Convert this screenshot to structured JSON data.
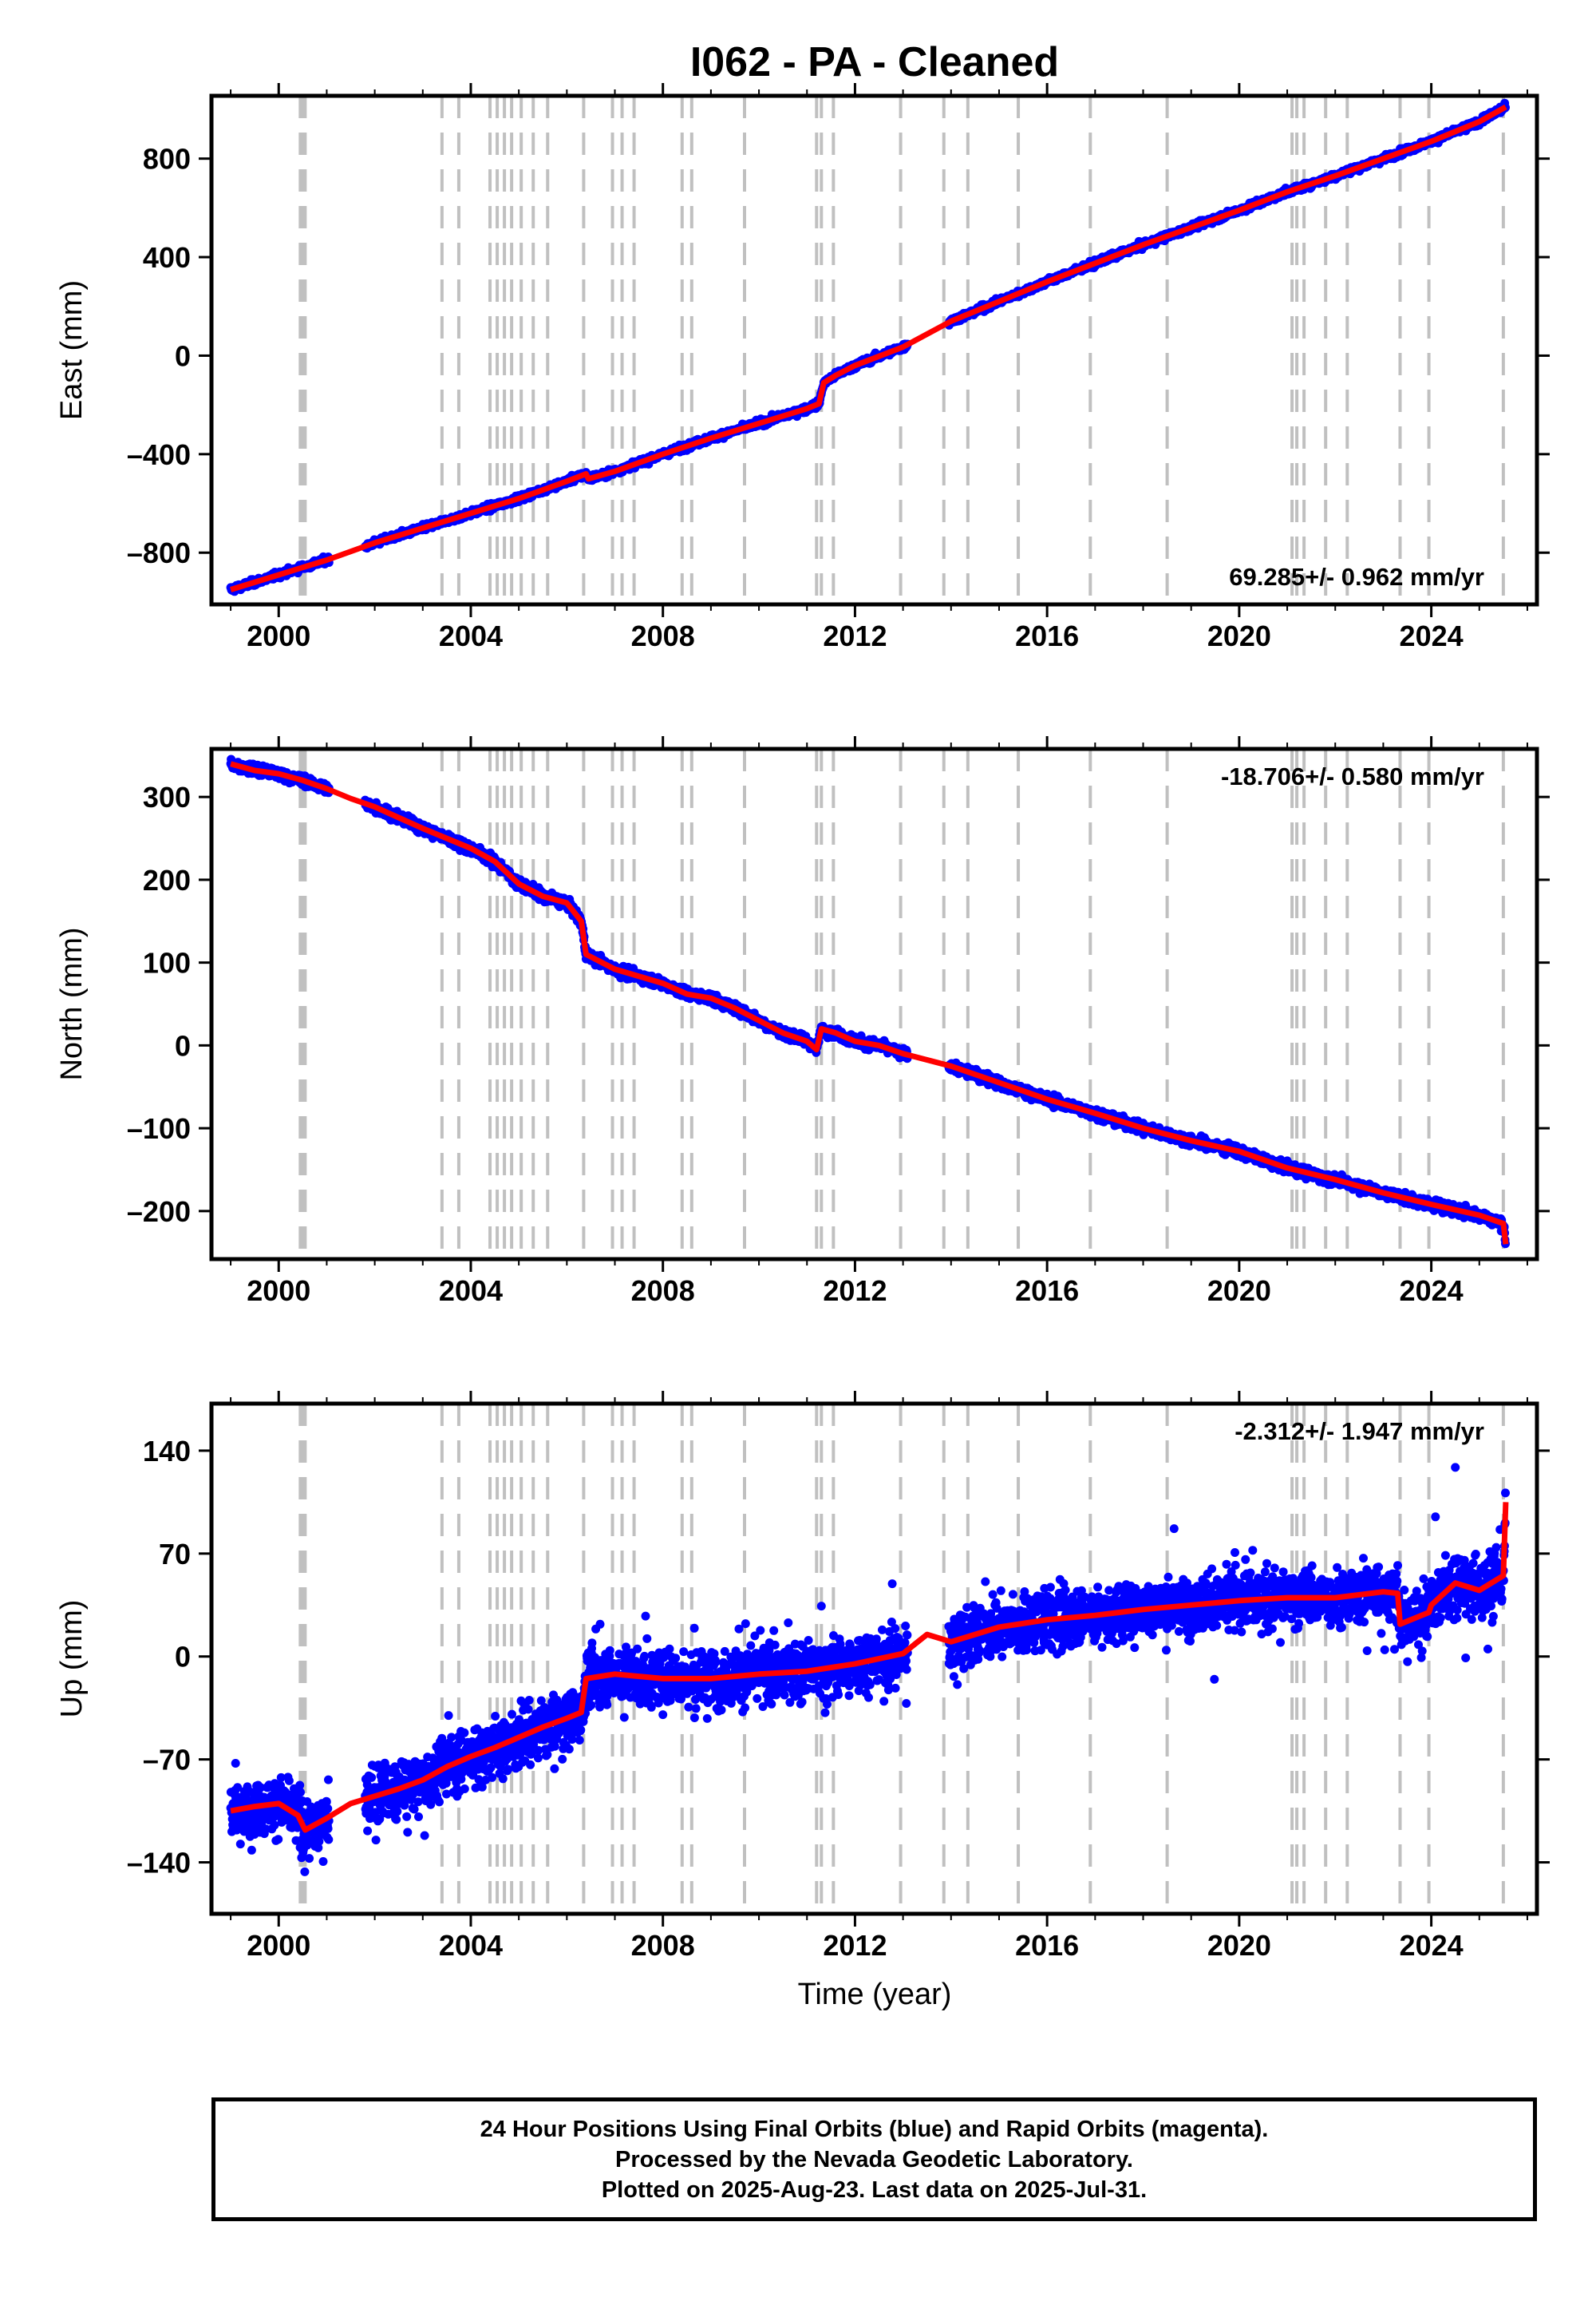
{
  "title": "I062  - PA - Cleaned",
  "x_axis": {
    "label": "Time (year)",
    "range": [
      1998.6,
      2026.2
    ],
    "ticks": [
      2000,
      2004,
      2008,
      2012,
      2016,
      2020,
      2024
    ],
    "tick_labels": [
      "2000",
      "2004",
      "2008",
      "2012",
      "2016",
      "2020",
      "2024"
    ]
  },
  "event_lines": {
    "color": "#c0c0c0",
    "style": "dashed",
    "years": [
      2000.45,
      2000.5,
      2000.55,
      2003.4,
      2003.75,
      2004.4,
      2004.55,
      2004.7,
      2004.85,
      2005.05,
      2005.3,
      2005.6,
      2006.35,
      2006.95,
      2007.15,
      2007.4,
      2008.4,
      2008.6,
      2009.7,
      2011.2,
      2011.3,
      2011.55,
      2012.95,
      2013.85,
      2014.35,
      2015.4,
      2016.9,
      2018.5,
      2021.1,
      2021.2,
      2021.35,
      2021.8,
      2022.25,
      2023.35,
      2023.95,
      2025.5
    ]
  },
  "chart_data": [
    {
      "type": "scatter",
      "ylabel": "East (mm)",
      "ylim": [
        -1010,
        1055
      ],
      "yticks": [
        -800,
        -400,
        0,
        400,
        800
      ],
      "ytick_labels": [
        "–800",
        "–400",
        "0",
        "400",
        "800"
      ],
      "rate_label": "69.285+/- 0.962 mm/yr",
      "rate_label_position": "bottom-right",
      "series": [
        {
          "name": "Final Orbits",
          "color": "#0000ff",
          "x": [
            1999.0,
            2000.0,
            2000.5,
            2001.0,
            2002.0,
            2003.0,
            2004.0,
            2005.0,
            2006.0,
            2006.4,
            2006.45,
            2007.0,
            2008.0,
            2009.0,
            2010.0,
            2011.0,
            2011.25,
            2011.35,
            2011.6,
            2012.0,
            2013.0,
            2014.0,
            2015.0,
            2016.0,
            2017.0,
            2018.0,
            2019.0,
            2020.0,
            2021.0,
            2022.0,
            2023.0,
            2024.0,
            2025.0,
            2025.55
          ],
          "y": [
            -950,
            -890,
            -860,
            -830,
            -760,
            -700,
            -640,
            -580,
            -510,
            -480,
            -500,
            -470,
            -400,
            -335,
            -275,
            -215,
            -195,
            -110,
            -80,
            -40,
            35,
            140,
            220,
            300,
            375,
            450,
            520,
            590,
            665,
            730,
            800,
            870,
            950,
            1010
          ]
        },
        {
          "name": "Model",
          "color": "#ff0000",
          "x": [
            1999.0,
            2000.0,
            2000.5,
            2001.0,
            2002.0,
            2003.0,
            2004.0,
            2005.0,
            2006.0,
            2006.4,
            2006.45,
            2007.0,
            2008.0,
            2009.0,
            2010.0,
            2011.0,
            2011.25,
            2011.35,
            2011.6,
            2012.0,
            2013.0,
            2014.0,
            2015.0,
            2016.0,
            2017.0,
            2018.0,
            2019.0,
            2020.0,
            2021.0,
            2022.0,
            2023.0,
            2024.0,
            2025.0,
            2025.55
          ],
          "y": [
            -950,
            -890,
            -860,
            -830,
            -760,
            -700,
            -640,
            -580,
            -510,
            -480,
            -500,
            -470,
            -400,
            -335,
            -275,
            -215,
            -195,
            -110,
            -80,
            -40,
            35,
            140,
            220,
            300,
            375,
            450,
            520,
            590,
            665,
            730,
            800,
            870,
            950,
            1010
          ]
        }
      ]
    },
    {
      "type": "scatter",
      "ylabel": "North (mm)",
      "ylim": [
        -258,
        358
      ],
      "yticks": [
        -200,
        -100,
        0,
        100,
        200,
        300
      ],
      "ytick_labels": [
        "–200",
        "–100",
        "0",
        "100",
        "200",
        "300"
      ],
      "rate_label": "-18.706+/- 0.580 mm/yr",
      "rate_label_position": "top-right",
      "series": [
        {
          "name": "Final Orbits",
          "color": "#0000ff",
          "x": [
            1999.0,
            1999.5,
            2000.0,
            2000.5,
            2001.0,
            2001.5,
            2002.0,
            2003.0,
            2004.0,
            2004.5,
            2005.0,
            2005.5,
            2006.0,
            2006.3,
            2006.4,
            2007.0,
            2008.0,
            2008.5,
            2009.0,
            2009.5,
            2010.0,
            2010.5,
            2011.0,
            2011.2,
            2011.3,
            2011.6,
            2012.0,
            2012.5,
            2013.0,
            2014.0,
            2015.0,
            2016.0,
            2017.0,
            2018.0,
            2019.0,
            2020.0,
            2021.0,
            2022.0,
            2023.0,
            2024.0,
            2025.0,
            2025.5,
            2025.55
          ],
          "y": [
            340,
            332,
            328,
            320,
            310,
            298,
            288,
            262,
            238,
            222,
            195,
            180,
            172,
            150,
            110,
            92,
            75,
            62,
            57,
            45,
            30,
            15,
            5,
            -5,
            20,
            15,
            5,
            0,
            -10,
            -25,
            -45,
            -65,
            -82,
            -100,
            -115,
            -128,
            -148,
            -162,
            -178,
            -192,
            -205,
            -215,
            -240
          ]
        },
        {
          "name": "Model",
          "color": "#ff0000",
          "x": [
            1999.0,
            1999.5,
            2000.0,
            2000.5,
            2001.0,
            2001.5,
            2002.0,
            2003.0,
            2004.0,
            2004.5,
            2005.0,
            2005.5,
            2006.0,
            2006.3,
            2006.4,
            2007.0,
            2008.0,
            2008.5,
            2009.0,
            2009.5,
            2010.0,
            2010.5,
            2011.0,
            2011.2,
            2011.3,
            2011.6,
            2012.0,
            2012.5,
            2013.0,
            2014.0,
            2015.0,
            2016.0,
            2017.0,
            2018.0,
            2019.0,
            2020.0,
            2021.0,
            2022.0,
            2023.0,
            2024.0,
            2025.0,
            2025.5,
            2025.55
          ],
          "y": [
            340,
            332,
            328,
            320,
            310,
            298,
            288,
            262,
            238,
            222,
            195,
            180,
            172,
            150,
            110,
            92,
            75,
            62,
            57,
            45,
            30,
            15,
            5,
            -5,
            20,
            15,
            5,
            0,
            -10,
            -25,
            -45,
            -65,
            -82,
            -100,
            -115,
            -128,
            -148,
            -162,
            -178,
            -192,
            -205,
            -215,
            -240
          ]
        }
      ]
    },
    {
      "type": "scatter",
      "ylabel": "Up (mm)",
      "ylim": [
        -175,
        172
      ],
      "yticks": [
        -140,
        -70,
        0,
        70,
        140
      ],
      "ytick_labels": [
        "–140",
        "–70",
        "0",
        "70",
        "140"
      ],
      "rate_label": "-2.312+/- 1.947 mm/yr",
      "rate_label_position": "top-right",
      "series": [
        {
          "name": "Final Orbits",
          "color": "#0000ff",
          "x": [
            1999.0,
            1999.5,
            2000.0,
            2000.4,
            2000.55,
            2001.0,
            2001.5,
            2002.0,
            2002.5,
            2003.0,
            2003.5,
            2004.0,
            2004.5,
            2005.0,
            2005.5,
            2006.0,
            2006.3,
            2006.4,
            2007.0,
            2008.0,
            2009.0,
            2010.0,
            2011.0,
            2012.0,
            2013.0,
            2013.5,
            2014.0,
            2014.5,
            2015.0,
            2016.0,
            2017.0,
            2018.0,
            2019.0,
            2020.0,
            2021.0,
            2022.0,
            2023.0,
            2023.3,
            2023.35,
            2023.95,
            2024.0,
            2024.5,
            2025.0,
            2025.5,
            2025.55
          ],
          "y": [
            -105,
            -102,
            -100,
            -108,
            -118,
            -110,
            -100,
            -95,
            -90,
            -84,
            -75,
            -68,
            -62,
            -55,
            -48,
            -42,
            -38,
            -15,
            -12,
            -15,
            -15,
            -12,
            -10,
            -5,
            2,
            15,
            10,
            15,
            20,
            25,
            28,
            32,
            35,
            38,
            40,
            40,
            44,
            43,
            22,
            30,
            35,
            50,
            45,
            55,
            105
          ]
        },
        {
          "name": "Model",
          "color": "#ff0000",
          "x": [
            1999.0,
            1999.5,
            2000.0,
            2000.4,
            2000.55,
            2001.0,
            2001.5,
            2002.0,
            2002.5,
            2003.0,
            2003.5,
            2004.0,
            2004.5,
            2005.0,
            2005.5,
            2006.0,
            2006.3,
            2006.4,
            2007.0,
            2008.0,
            2009.0,
            2010.0,
            2011.0,
            2012.0,
            2013.0,
            2013.5,
            2014.0,
            2014.5,
            2015.0,
            2016.0,
            2017.0,
            2018.0,
            2019.0,
            2020.0,
            2021.0,
            2022.0,
            2023.0,
            2023.3,
            2023.35,
            2023.95,
            2024.0,
            2024.5,
            2025.0,
            2025.5,
            2025.55
          ],
          "y": [
            -105,
            -102,
            -100,
            -108,
            -118,
            -110,
            -100,
            -95,
            -90,
            -84,
            -75,
            -68,
            -62,
            -55,
            -48,
            -42,
            -38,
            -15,
            -12,
            -15,
            -15,
            -12,
            -10,
            -5,
            2,
            15,
            10,
            15,
            20,
            25,
            28,
            32,
            35,
            38,
            40,
            40,
            44,
            43,
            22,
            30,
            35,
            50,
            45,
            55,
            105
          ]
        }
      ]
    }
  ],
  "footer": {
    "line1": "24 Hour Positions Using Final Orbits (blue) and Rapid Orbits (magenta).",
    "line2": "Processed by the Nevada Geodetic Laboratory.",
    "line3": "Plotted on 2025-Aug-23. Last data on 2025-Jul-31."
  }
}
